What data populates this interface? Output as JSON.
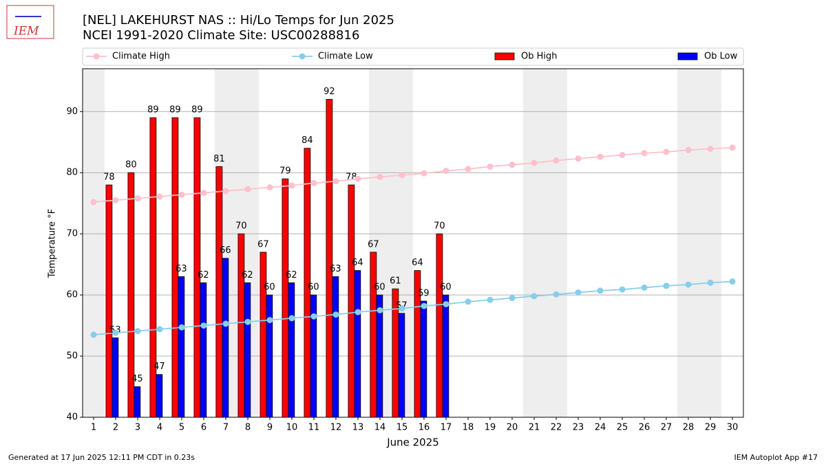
{
  "chart_data": {
    "type": "bar_line",
    "title": "[NEL] LAKEHURST NAS :: Hi/Lo Temps for Jun 2025",
    "subtitle": "NCEI 1991-2020 Climate Site: USC00288816",
    "x_label": "June 2025",
    "y_label": "Temperature °F",
    "x": [
      1,
      2,
      3,
      4,
      5,
      6,
      7,
      8,
      9,
      10,
      11,
      12,
      13,
      14,
      15,
      16,
      17,
      18,
      19,
      20,
      21,
      22,
      23,
      24,
      25,
      26,
      27,
      28,
      29,
      30
    ],
    "xlim": [
      0.5,
      30.5
    ],
    "xticks": [
      1,
      2,
      3,
      4,
      5,
      6,
      7,
      8,
      9,
      10,
      11,
      12,
      13,
      14,
      15,
      16,
      17,
      18,
      19,
      20,
      21,
      22,
      23,
      24,
      25,
      26,
      27,
      28,
      29,
      30
    ],
    "ylim": [
      40,
      97
    ],
    "yticks": [
      40,
      50,
      60,
      70,
      80,
      90
    ],
    "grid": true,
    "shaded_days": [
      1,
      7,
      8,
      14,
      15,
      21,
      22,
      28,
      29
    ],
    "legend": "top",
    "series": [
      {
        "name": "Climate High",
        "kind": "line",
        "color": "#ffc0cb",
        "values": [
          75.2,
          75.5,
          75.8,
          76.1,
          76.4,
          76.7,
          77.0,
          77.3,
          77.6,
          77.9,
          78.3,
          78.6,
          79.0,
          79.3,
          79.6,
          79.9,
          80.3,
          80.6,
          81.0,
          81.3,
          81.6,
          82.0,
          82.3,
          82.6,
          82.9,
          83.2,
          83.4,
          83.7,
          83.9,
          84.1
        ]
      },
      {
        "name": "Climate Low",
        "kind": "line",
        "color": "#87ceeb",
        "values": [
          53.5,
          53.8,
          54.1,
          54.4,
          54.7,
          55.0,
          55.3,
          55.6,
          55.9,
          56.2,
          56.5,
          56.8,
          57.2,
          57.5,
          57.8,
          58.2,
          58.5,
          58.9,
          59.2,
          59.5,
          59.8,
          60.1,
          60.4,
          60.7,
          60.9,
          61.2,
          61.5,
          61.7,
          62.0,
          62.2
        ]
      },
      {
        "name": "Ob High",
        "kind": "bar",
        "color": "#ff0000",
        "values": [
          null,
          78,
          80,
          89,
          89,
          89,
          81,
          70,
          67,
          79,
          84,
          92,
          78,
          67,
          61,
          64,
          70,
          null,
          null,
          null,
          null,
          null,
          null,
          null,
          null,
          null,
          null,
          null,
          null,
          null
        ]
      },
      {
        "name": "Ob Low",
        "kind": "bar",
        "color": "#0000ff",
        "values": [
          null,
          53,
          45,
          47,
          63,
          62,
          66,
          62,
          60,
          62,
          60,
          63,
          64,
          60,
          57,
          59,
          60,
          null,
          null,
          null,
          null,
          null,
          null,
          null,
          null,
          null,
          null,
          null,
          null,
          null
        ]
      }
    ]
  },
  "logo": "IEM",
  "footer": {
    "left": "Generated at 17 Jun 2025 12:11 PM CDT in 0.23s",
    "right": "IEM Autoplot App #17"
  }
}
